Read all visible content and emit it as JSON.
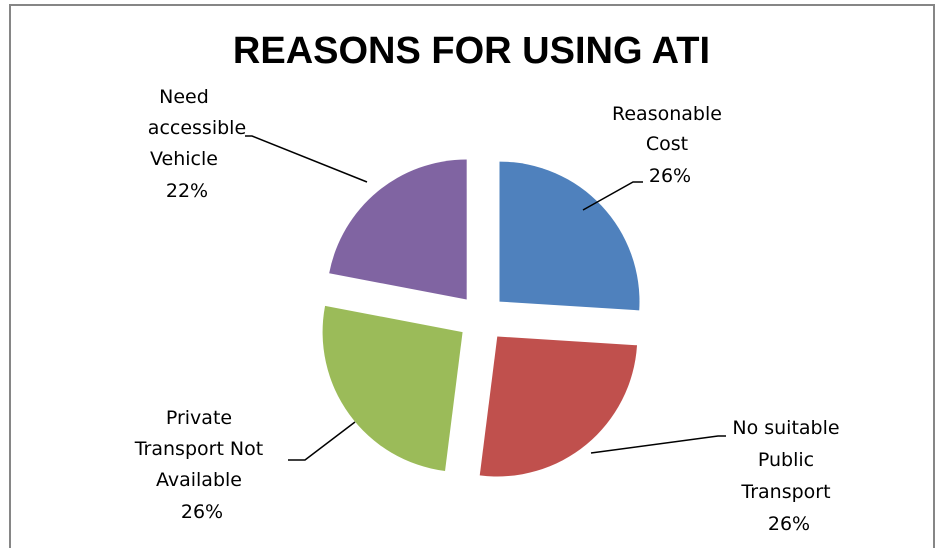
{
  "chart_data": {
    "type": "pie",
    "title": "REASONS FOR USING ATI",
    "slices": [
      {
        "label": "Reasonable Cost",
        "value": 26,
        "percent_label": "26%",
        "color": "#4F81BD"
      },
      {
        "label": "No suitable Public Transport",
        "value": 26,
        "percent_label": "26%",
        "color": "#C0504D"
      },
      {
        "label": "Private Transport Not Available",
        "value": 26,
        "percent_label": "26%",
        "color": "#9BBB59"
      },
      {
        "label": "Need accessible Vehicle",
        "value": 22,
        "percent_label": "22%",
        "color": "#8064A2"
      }
    ],
    "exploded": true,
    "legend": "none"
  }
}
